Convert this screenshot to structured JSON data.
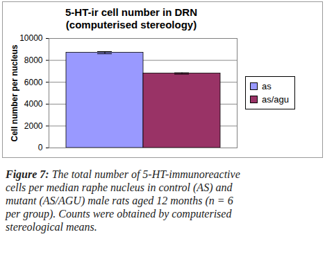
{
  "chart_data": {
    "type": "bar",
    "title": "5-HT-ir cell number in DRN",
    "subtitle": "(computerised stereology)",
    "y_label": "Cell number per nucleus",
    "categories": [
      null
    ],
    "series": [
      {
        "name": "as",
        "color": "#9999ff",
        "values": [
          8700
        ],
        "errors": [
          100
        ]
      },
      {
        "name": "as/agu",
        "color": "#993366",
        "values": [
          6800
        ],
        "errors": [
          60
        ]
      }
    ],
    "ylim": [
      0,
      10000
    ],
    "yticks": [
      0,
      2000,
      4000,
      6000,
      8000,
      10000
    ],
    "grid": true,
    "legend": "right",
    "tick_labels": "y",
    "caption": "Figure 7: The total number of 5-HT-immunoreactive cells per median raphe nucleus in control (AS) and mutant (AS/AGU) male rats aged 12 months (n = 6 per group). Counts were obtained by computerised stereological means."
  }
}
